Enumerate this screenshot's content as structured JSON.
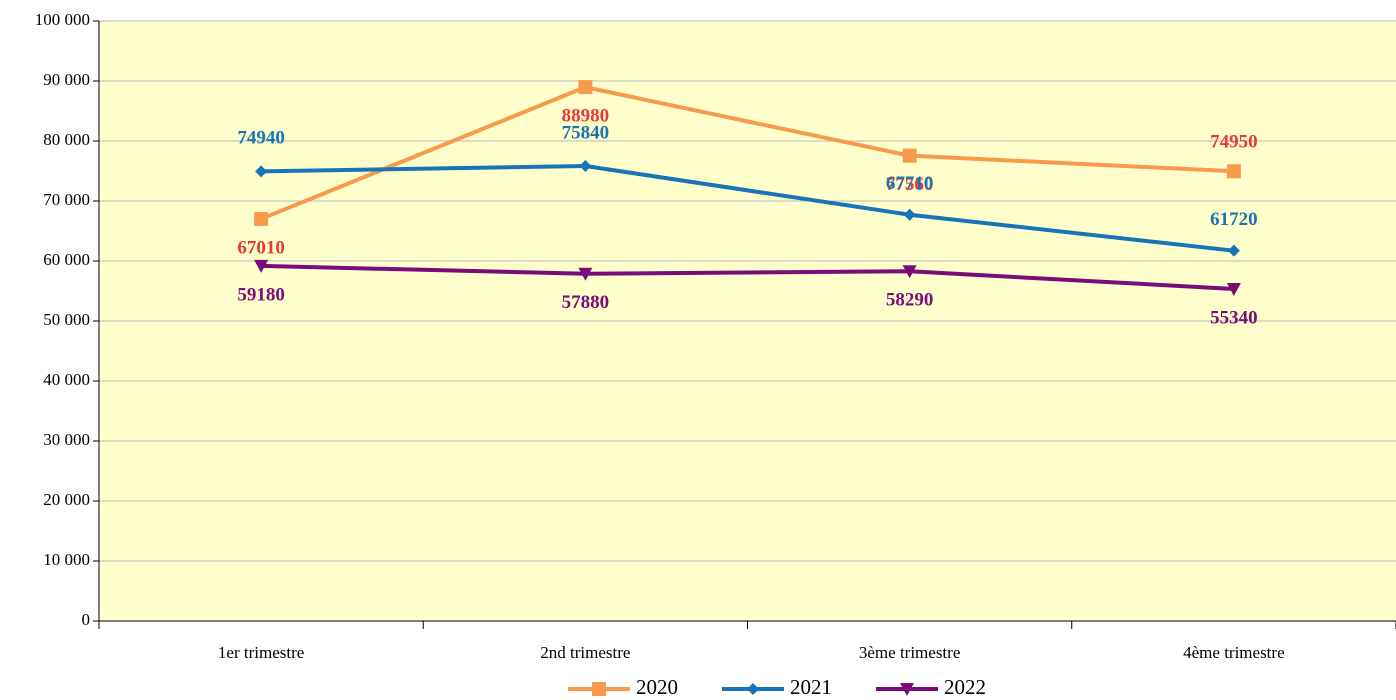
{
  "chart_data": {
    "type": "line",
    "categories": [
      "1er trimestre",
      "2nd  trimestre",
      "3ème trimestre",
      "4ème trimestre"
    ],
    "series": [
      {
        "name": "2020",
        "color": "#f79a4c",
        "label_color": "#e8383d",
        "marker": "square",
        "values": [
          67010,
          88980,
          77560,
          74950
        ]
      },
      {
        "name": "2021",
        "color": "#1873b9",
        "label_color": "#1873b9",
        "marker": "diamond",
        "values": [
          74940,
          75840,
          67710,
          61720
        ]
      },
      {
        "name": "2022",
        "color": "#7a0b7a",
        "label_color": "#7a0b7a",
        "marker": "triangle-down",
        "values": [
          59180,
          57880,
          58290,
          55340
        ]
      }
    ],
    "ylim": [
      0,
      100000
    ],
    "yticks": [
      0,
      {
        "value": 10000,
        "label": "10 000"
      },
      {
        "value": 20000,
        "label": "20 000"
      },
      {
        "value": 30000,
        "label": "30 000"
      },
      {
        "value": 40000,
        "label": "40 000"
      },
      {
        "value": 50000,
        "label": "50 000"
      },
      {
        "value": 60000,
        "label": "60 000"
      },
      {
        "value": 70000,
        "label": "70 000"
      },
      {
        "value": 80000,
        "label": "80 000"
      },
      {
        "value": 90000,
        "label": "90 000"
      },
      {
        "value": 100000,
        "label": "100 000"
      }
    ],
    "grid": true,
    "plot_background": "#ffffcc",
    "legend": "bottom"
  }
}
